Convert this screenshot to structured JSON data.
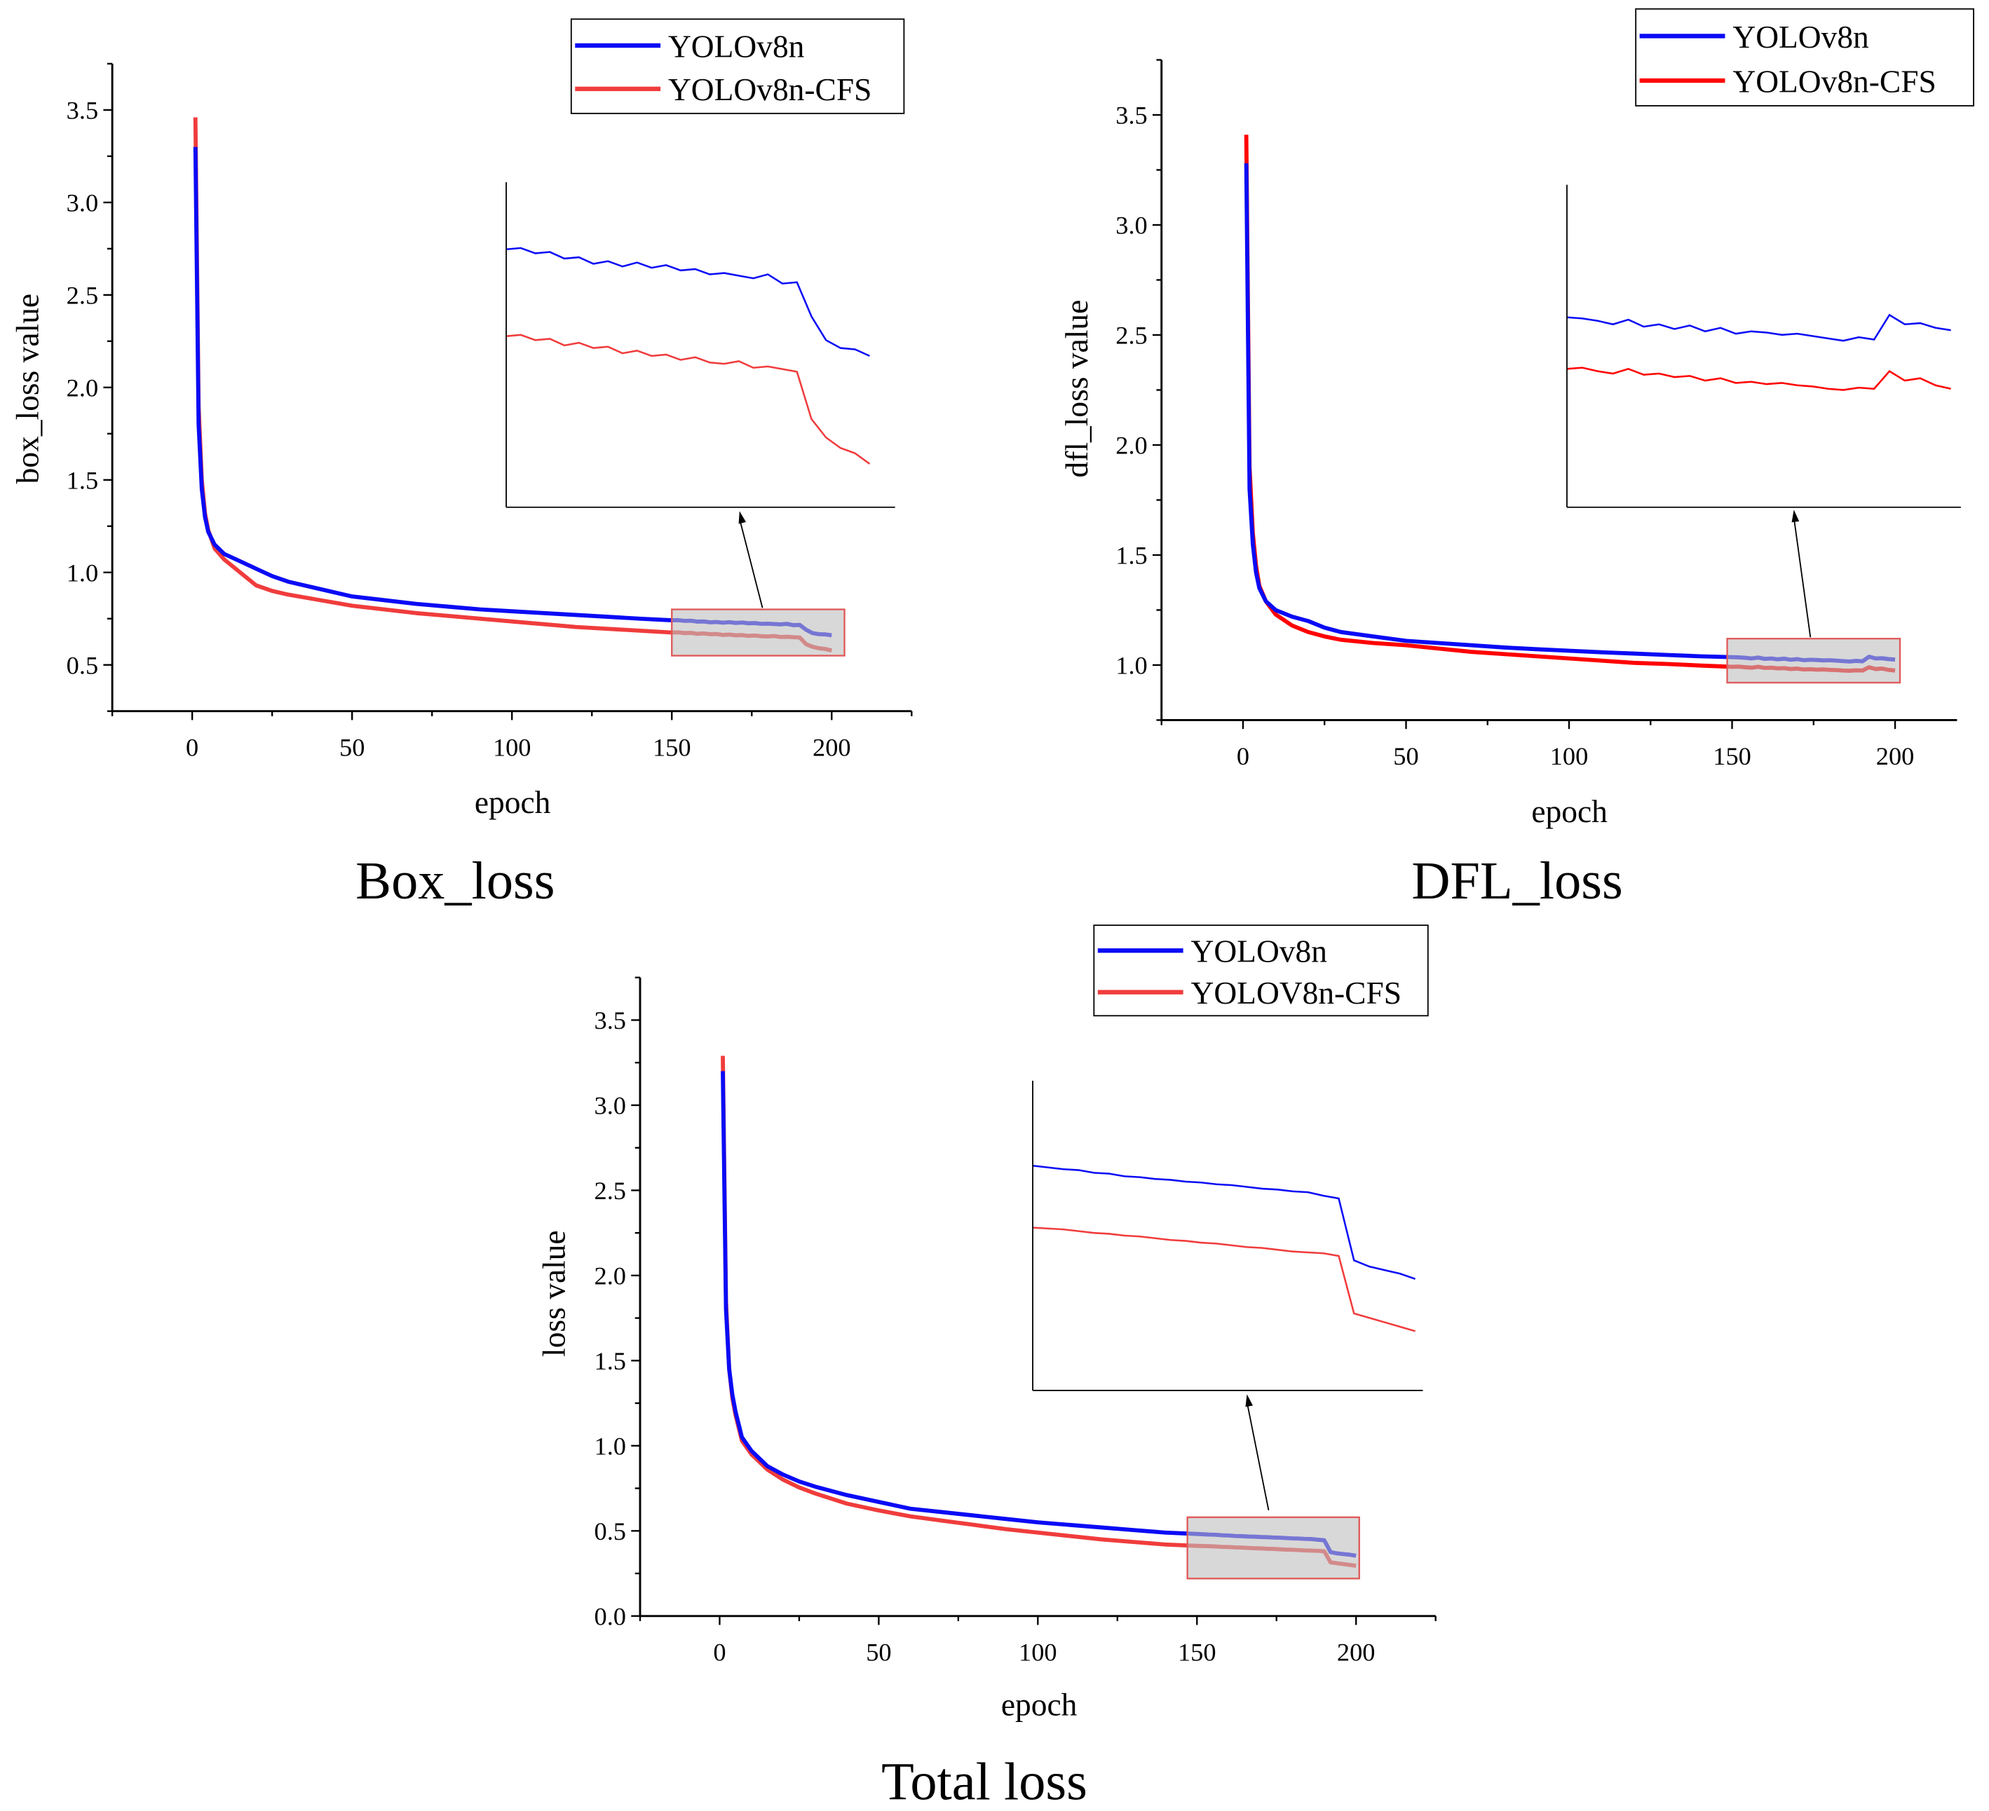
{
  "chart_data": [
    {
      "type": "line",
      "title": "Box_loss",
      "xlabel": "epoch",
      "ylabel": "box_loss value",
      "xlim": [
        -25,
        225
      ],
      "ylim": [
        0.25,
        3.75
      ],
      "xticks": [
        "0",
        "50",
        "100",
        "150",
        "200"
      ],
      "yticks": [
        "0.5",
        "1.0",
        "1.5",
        "2.0",
        "2.5",
        "3.0",
        "3.5"
      ],
      "legend_position": "top-right",
      "zoom_region": {
        "x": [
          150,
          204
        ],
        "y": [
          0.55,
          0.8
        ]
      },
      "inset": {
        "xlim": [
          150,
          203.5
        ],
        "ylim": [
          0.545,
          0.792
        ]
      },
      "x": [
        1,
        2,
        3,
        4,
        5,
        7,
        10,
        15,
        20,
        25,
        30,
        40,
        50,
        60,
        70,
        80,
        90,
        100,
        110,
        120,
        130,
        140,
        150,
        152,
        154,
        156,
        158,
        160,
        162,
        164,
        166,
        168,
        170,
        172,
        174,
        176,
        178,
        180,
        182,
        184,
        186,
        188,
        190,
        192,
        194,
        196,
        198,
        200
      ],
      "series": [
        {
          "name": "YOLOv8n",
          "color": "#0a0af5",
          "values": [
            3.3,
            1.8,
            1.45,
            1.3,
            1.22,
            1.15,
            1.1,
            1.06,
            1.02,
            0.98,
            0.95,
            0.91,
            0.87,
            0.85,
            0.83,
            0.815,
            0.8,
            0.79,
            0.78,
            0.77,
            0.76,
            0.75,
            0.741,
            0.742,
            0.738,
            0.739,
            0.734,
            0.735,
            0.73,
            0.732,
            0.728,
            0.731,
            0.727,
            0.729,
            0.725,
            0.726,
            0.722,
            0.723,
            0.721,
            0.719,
            0.722,
            0.715,
            0.716,
            0.69,
            0.672,
            0.666,
            0.665,
            0.66
          ]
        },
        {
          "name": "YOLOv8n-CFS",
          "color": "#f03c3c",
          "values": [
            3.46,
            1.9,
            1.5,
            1.32,
            1.23,
            1.13,
            1.07,
            1.0,
            0.93,
            0.9,
            0.88,
            0.85,
            0.82,
            0.8,
            0.78,
            0.765,
            0.75,
            0.735,
            0.72,
            0.705,
            0.695,
            0.685,
            0.675,
            0.676,
            0.672,
            0.673,
            0.668,
            0.67,
            0.666,
            0.667,
            0.662,
            0.664,
            0.66,
            0.661,
            0.657,
            0.659,
            0.655,
            0.654,
            0.656,
            0.651,
            0.652,
            0.65,
            0.648,
            0.612,
            0.598,
            0.59,
            0.586,
            0.578
          ]
        }
      ]
    },
    {
      "type": "line",
      "title": "DFL_loss",
      "xlabel": "epoch",
      "ylabel": "dfl_loss value",
      "xlim": [
        -25,
        219
      ],
      "ylim": [
        0.75,
        3.75
      ],
      "xticks": [
        "0",
        "50",
        "100",
        "150",
        "200"
      ],
      "yticks": [
        "1.0",
        "1.5",
        "2.0",
        "2.5",
        "3.0",
        "3.5"
      ],
      "legend_position": "top-right",
      "zoom_region": {
        "x": [
          148.5,
          201.5
        ],
        "y": [
          0.92,
          1.12
        ]
      },
      "inset": {
        "xlim": [
          150,
          201.3
        ],
        "ylim": [
          0.874,
          1.149
        ]
      },
      "x": [
        1,
        2,
        3,
        4,
        5,
        7,
        10,
        15,
        20,
        25,
        30,
        40,
        50,
        60,
        70,
        80,
        90,
        100,
        110,
        120,
        130,
        140,
        150,
        152,
        154,
        156,
        158,
        160,
        162,
        164,
        166,
        168,
        170,
        172,
        174,
        176,
        178,
        180,
        182,
        184,
        186,
        188,
        190,
        192,
        194,
        196,
        198,
        200
      ],
      "series": [
        {
          "name": "YOLOv8n",
          "color": "#0a0af5",
          "values": [
            3.28,
            1.8,
            1.55,
            1.42,
            1.35,
            1.29,
            1.25,
            1.22,
            1.2,
            1.17,
            1.15,
            1.13,
            1.11,
            1.1,
            1.09,
            1.08,
            1.072,
            1.065,
            1.058,
            1.052,
            1.046,
            1.04,
            1.036,
            1.035,
            1.033,
            1.03,
            1.034,
            1.028,
            1.03,
            1.026,
            1.029,
            1.024,
            1.027,
            1.022,
            1.024,
            1.023,
            1.021,
            1.022,
            1.02,
            1.018,
            1.016,
            1.019,
            1.017,
            1.038,
            1.03,
            1.031,
            1.027,
            1.025
          ]
        },
        {
          "name": "YOLOv8n-CFS",
          "color": "#ff0000",
          "values": [
            3.41,
            1.9,
            1.6,
            1.45,
            1.36,
            1.29,
            1.23,
            1.18,
            1.15,
            1.13,
            1.115,
            1.1,
            1.09,
            1.075,
            1.06,
            1.05,
            1.04,
            1.03,
            1.02,
            1.01,
            1.005,
            0.998,
            0.992,
            0.993,
            0.99,
            0.988,
            0.992,
            0.987,
            0.988,
            0.985,
            0.986,
            0.982,
            0.984,
            0.98,
            0.981,
            0.979,
            0.98,
            0.978,
            0.977,
            0.975,
            0.974,
            0.976,
            0.975,
            0.99,
            0.982,
            0.984,
            0.978,
            0.975
          ]
        }
      ]
    },
    {
      "type": "line",
      "title": "Total loss",
      "xlabel": "epoch",
      "ylabel": "loss value",
      "xlim": [
        -25,
        225
      ],
      "ylim": [
        0.0,
        3.75
      ],
      "xticks": [
        "0",
        "50",
        "100",
        "150",
        "200"
      ],
      "yticks": [
        "0.0",
        "0.5",
        "1.0",
        "1.5",
        "2.0",
        "2.5",
        "3.0",
        "3.5"
      ],
      "legend_position": "top-right",
      "zoom_region": {
        "x": [
          147,
          201
        ],
        "y": [
          0.22,
          0.58
        ]
      },
      "inset": {
        "xlim": [
          150,
          201
        ],
        "ylim": [
          0.228,
          0.578
        ]
      },
      "x": [
        1,
        2,
        3,
        4,
        5,
        7,
        10,
        15,
        20,
        25,
        30,
        40,
        50,
        60,
        70,
        80,
        90,
        100,
        110,
        120,
        130,
        140,
        150,
        152,
        154,
        156,
        158,
        160,
        162,
        164,
        166,
        168,
        170,
        172,
        174,
        176,
        178,
        180,
        182,
        184,
        186,
        188,
        190,
        192,
        194,
        196,
        198,
        200
      ],
      "series": [
        {
          "name": "YOLOv8n",
          "color": "#0a0af5",
          "values": [
            3.2,
            1.8,
            1.45,
            1.3,
            1.2,
            1.05,
            0.97,
            0.88,
            0.83,
            0.79,
            0.76,
            0.71,
            0.67,
            0.63,
            0.61,
            0.59,
            0.57,
            0.55,
            0.535,
            0.52,
            0.505,
            0.49,
            0.482,
            0.48,
            0.478,
            0.477,
            0.474,
            0.473,
            0.47,
            0.469,
            0.467,
            0.466,
            0.464,
            0.463,
            0.461,
            0.46,
            0.458,
            0.456,
            0.455,
            0.453,
            0.452,
            0.448,
            0.445,
            0.375,
            0.368,
            0.364,
            0.36,
            0.354
          ]
        },
        {
          "name": "YOLOV8n-CFS",
          "color": "#f03c3c",
          "values": [
            3.29,
            1.85,
            1.45,
            1.28,
            1.18,
            1.03,
            0.95,
            0.86,
            0.8,
            0.755,
            0.72,
            0.66,
            0.62,
            0.585,
            0.56,
            0.535,
            0.51,
            0.49,
            0.47,
            0.45,
            0.435,
            0.42,
            0.412,
            0.411,
            0.41,
            0.408,
            0.406,
            0.405,
            0.403,
            0.402,
            0.4,
            0.398,
            0.397,
            0.395,
            0.394,
            0.392,
            0.39,
            0.389,
            0.387,
            0.385,
            0.384,
            0.383,
            0.38,
            0.315,
            0.31,
            0.305,
            0.3,
            0.295
          ]
        }
      ]
    }
  ]
}
